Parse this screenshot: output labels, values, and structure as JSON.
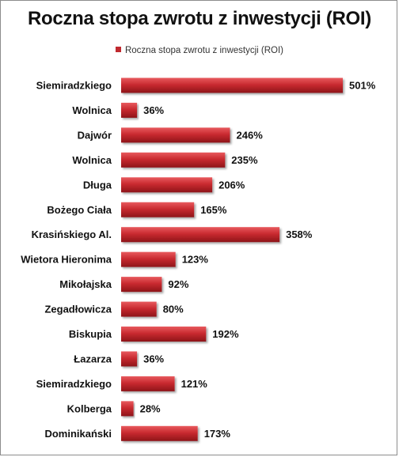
{
  "chart_data": {
    "type": "bar",
    "orientation": "horizontal",
    "title": "Roczna stopa zwrotu z inwestycji (ROI)",
    "legend": {
      "position": "top",
      "entries": [
        "Roczna stopa zwrotu z inwestycji (ROI)"
      ]
    },
    "categories": [
      "Siemiradzkiego",
      "Wolnica",
      "Dajwór",
      "Wolnica",
      "Długa",
      "Bożego Ciała",
      "Krasińskiego Al.",
      "Wietora Hieronima",
      "Mikołajska",
      "Zegadłowicza",
      "Biskupia",
      "Łazarza",
      "Siemiradzkiego",
      "Kolberga",
      "Dominikański"
    ],
    "series": [
      {
        "name": "Roczna stopa zwrotu z inwestycji (ROI)",
        "values": [
          501,
          36,
          246,
          235,
          206,
          165,
          358,
          123,
          92,
          80,
          192,
          36,
          121,
          28,
          173
        ],
        "labels": [
          "501%",
          "36%",
          "246%",
          "235%",
          "206%",
          "165%",
          "358%",
          "123%",
          "92%",
          "80%",
          "192%",
          "36%",
          "121%",
          "28%",
          "173%"
        ],
        "color": "#c0292f"
      }
    ],
    "xlim": [
      0,
      501
    ],
    "grid": false,
    "axes_visible": false
  }
}
